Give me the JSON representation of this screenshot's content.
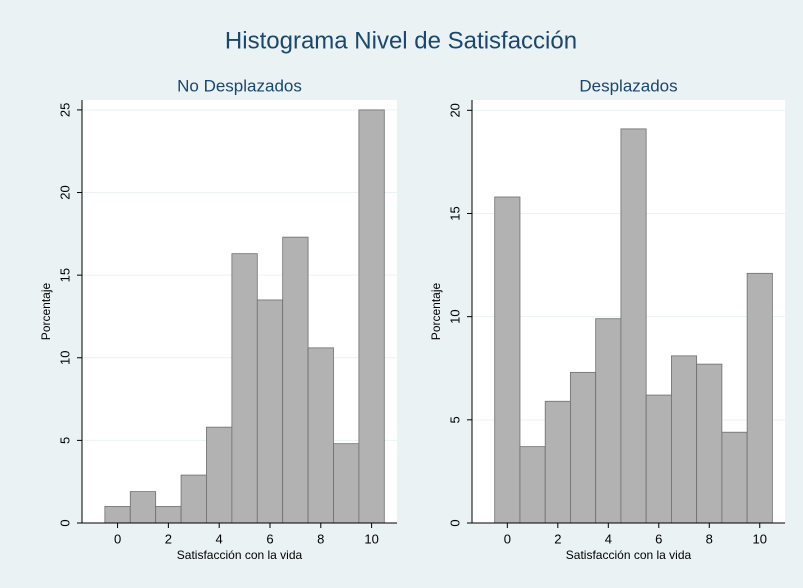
{
  "title": "Histograma Nivel de Satisfacción",
  "chart_data": [
    {
      "type": "histogram",
      "title": "No Desplazados",
      "xlabel": "Satisfacción con la vida",
      "ylabel": "Porcentaje",
      "bins": [
        -0.5,
        0.5,
        1.5,
        2.5,
        3.5,
        4.5,
        5.5,
        6.5,
        7.5,
        8.5,
        9.5,
        10.5
      ],
      "counts": [
        1.0,
        1.9,
        1.0,
        2.9,
        5.8,
        16.3,
        13.5,
        17.3,
        10.6,
        4.8,
        25.0
      ],
      "color": "#b2b2b2",
      "xlim": [
        -1.4,
        11.0
      ],
      "ylim": [
        0,
        25.6
      ],
      "xticks": [
        0,
        2,
        4,
        6,
        8,
        10
      ],
      "yticks": [
        0,
        5,
        10,
        15,
        20,
        25
      ],
      "grid": true
    },
    {
      "type": "histogram",
      "title": "Desplazados",
      "xlabel": "Satisfacción con la vida",
      "ylabel": "Porcentaje",
      "bins": [
        -0.5,
        0.5,
        1.5,
        2.5,
        3.5,
        4.5,
        5.5,
        6.5,
        7.5,
        8.5,
        9.5,
        10.5
      ],
      "counts": [
        15.8,
        3.7,
        5.9,
        7.3,
        9.9,
        19.1,
        6.2,
        8.1,
        7.7,
        4.4,
        12.1
      ],
      "color": "#b2b2b2",
      "xlim": [
        -1.4,
        11.0
      ],
      "ylim": [
        0,
        20.5
      ],
      "xticks": [
        0,
        2,
        4,
        6,
        8,
        10
      ],
      "yticks": [
        0,
        5,
        10,
        15,
        20
      ],
      "grid": true
    }
  ]
}
